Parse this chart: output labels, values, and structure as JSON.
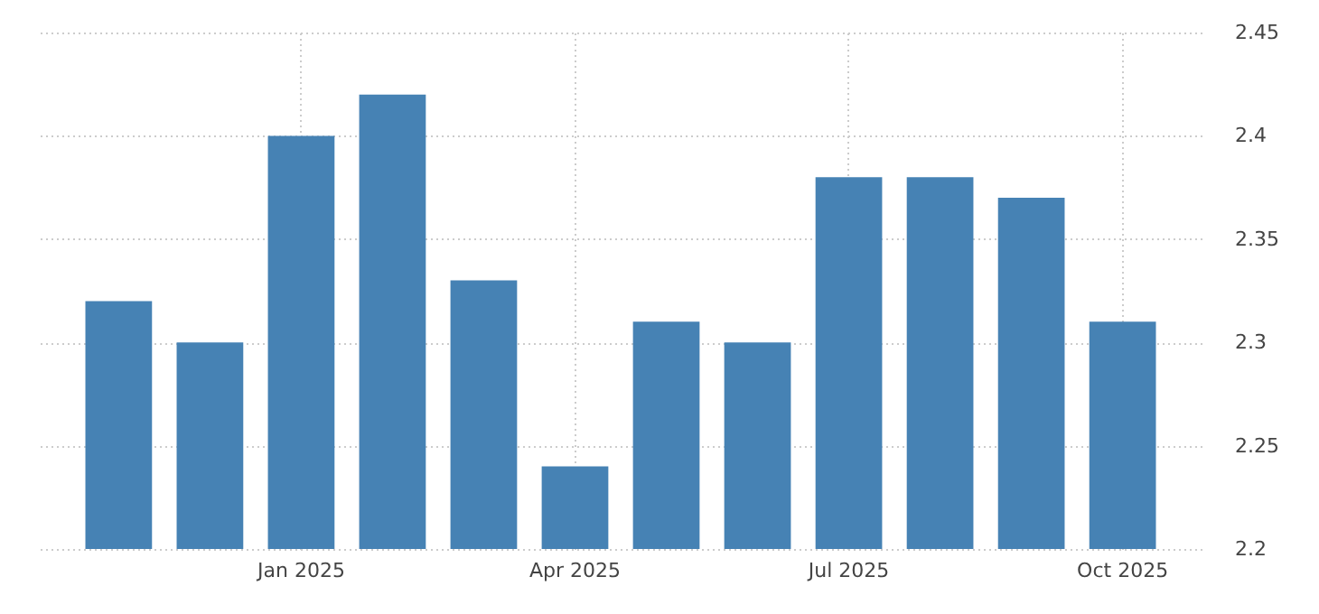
{
  "chart_data": {
    "type": "bar",
    "categories": [
      null,
      null,
      "Jan 2025",
      null,
      null,
      "Apr 2025",
      null,
      null,
      "Jul 2025",
      null,
      null,
      "Oct 2025"
    ],
    "values": [
      2.32,
      2.3,
      2.4,
      2.42,
      2.33,
      2.24,
      2.31,
      2.3,
      2.38,
      2.38,
      2.37,
      2.31
    ],
    "color": "#4682b4",
    "ylim": [
      2.2,
      2.45
    ],
    "yticks": [
      2.2,
      2.25,
      2.3,
      2.35,
      2.4,
      2.45
    ],
    "grid": true
  }
}
